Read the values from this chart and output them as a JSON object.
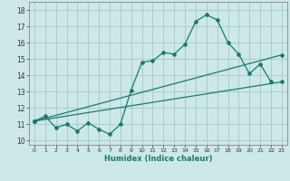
{
  "xlabel": "Humidex (Indice chaleur)",
  "background_color": "#cce8e8",
  "grid_color": "#aacccc",
  "line_color": "#1a7a6a",
  "xlim": [
    -0.5,
    23.5
  ],
  "ylim": [
    9.75,
    18.5
  ],
  "xticks": [
    0,
    1,
    2,
    3,
    4,
    5,
    6,
    7,
    8,
    9,
    10,
    11,
    12,
    13,
    14,
    15,
    16,
    17,
    18,
    19,
    20,
    21,
    22,
    23
  ],
  "yticks": [
    10,
    11,
    12,
    13,
    14,
    15,
    16,
    17,
    18
  ],
  "series1_x": [
    0,
    1,
    2,
    3,
    4,
    5,
    6,
    7,
    8,
    9,
    10,
    11,
    12,
    13,
    14,
    15,
    16,
    17,
    18,
    19,
    20,
    21,
    22
  ],
  "series1_y": [
    11.2,
    11.5,
    10.8,
    11.0,
    10.6,
    11.1,
    10.7,
    10.4,
    11.0,
    13.1,
    14.8,
    14.9,
    15.4,
    15.3,
    15.9,
    17.3,
    17.7,
    17.4,
    16.0,
    15.3,
    14.1,
    14.7,
    13.6
  ],
  "series2_x": [
    0,
    23
  ],
  "series2_y": [
    11.2,
    13.6
  ],
  "series3_x": [
    0,
    23
  ],
  "series3_y": [
    11.2,
    15.25
  ]
}
